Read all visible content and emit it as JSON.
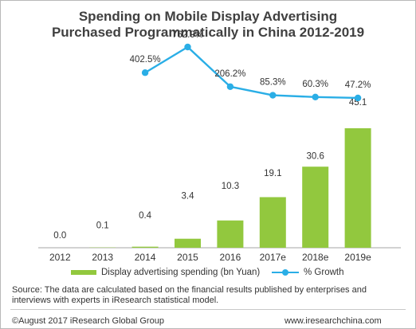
{
  "chart_data": {
    "type": "bar",
    "title_lines": [
      "Spending on Mobile Display Advertising",
      "Purchased Programmatically in China 2012-2019"
    ],
    "categories": [
      "2012",
      "2013",
      "2014",
      "2015",
      "2016",
      "2017e",
      "2018e",
      "2019e"
    ],
    "series": [
      {
        "name": "Display advertising spending (bn Yuan)",
        "type": "bar",
        "color": "#92c83e",
        "values": [
          0.0,
          0.1,
          0.4,
          3.4,
          10.3,
          19.1,
          30.6,
          45.1
        ],
        "labels": [
          "0.0",
          "0.1",
          "0.4",
          "3.4",
          "10.3",
          "19.1",
          "30.6",
          "45.1"
        ]
      },
      {
        "name": "% Growth",
        "type": "line",
        "color": "#2aaee6",
        "values": [
          null,
          null,
          402.5,
          762.9,
          206.2,
          85.3,
          60.3,
          47.2
        ],
        "labels": [
          null,
          null,
          "402.5%",
          "762.9%",
          "206.2%",
          "85.3%",
          "60.3%",
          "47.2%"
        ]
      }
    ],
    "legend_position": "bottom",
    "grid": false
  },
  "source": "Source: The data are calculated based on the financial results published by enterprises and interviews with experts in iResearch statistical model.",
  "footer": {
    "left": "©August 2017 iResearch Global Group",
    "right": "www.iresearchchina.com"
  }
}
